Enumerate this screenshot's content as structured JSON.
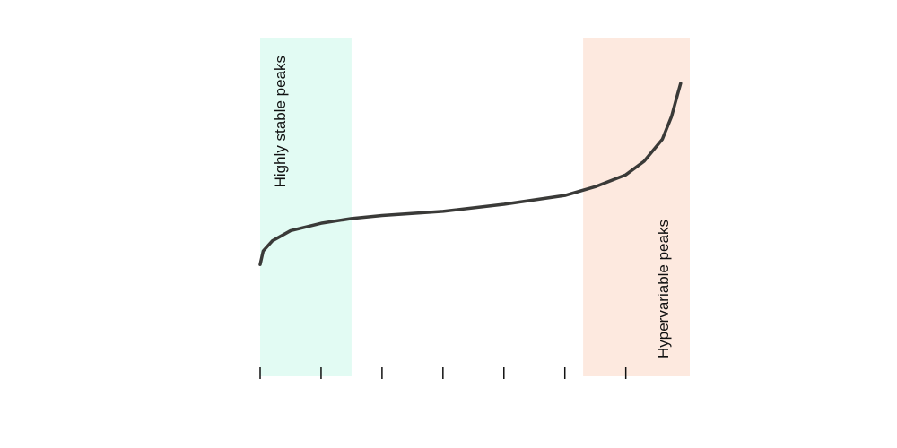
{
  "chart_data": {
    "type": "line",
    "regions": [
      {
        "label": "Highly stable peaks",
        "range": [
          0,
          1.5
        ],
        "color": "#e2fbf3"
      },
      {
        "label": "Hypervariable peaks",
        "range": [
          5.3,
          7.05
        ],
        "color": "#fde9df"
      }
    ],
    "x": [
      0,
      0.05,
      0.2,
      0.5,
      1,
      1.5,
      2,
      3,
      4,
      5,
      5.5,
      6,
      6.3,
      6.6,
      6.75,
      6.85,
      6.9
    ],
    "series": [
      {
        "color": "#3a3a38",
        "values": [
          0.33,
          0.37,
          0.4,
          0.43,
          0.452,
          0.466,
          0.475,
          0.487,
          0.508,
          0.534,
          0.56,
          0.595,
          0.635,
          0.7,
          0.767,
          0.833,
          0.865
        ]
      }
    ],
    "xlim": [
      0,
      7.05
    ],
    "ylim": [
      0,
      1
    ],
    "xticks": [
      0,
      1,
      2,
      3,
      4,
      5,
      6
    ]
  }
}
